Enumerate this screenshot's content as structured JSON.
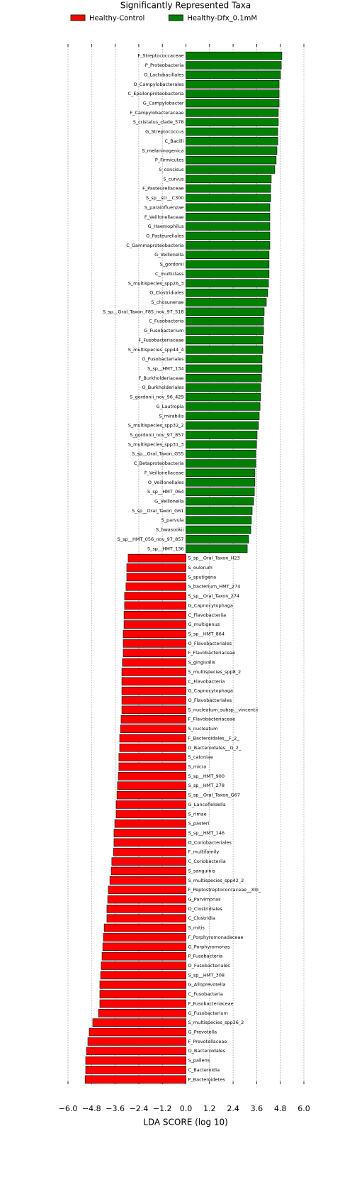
{
  "chart_data": {
    "type": "bar",
    "orientation": "horizontal",
    "title": "Significantly Represented Taxa",
    "x_label": "LDA SCORE (log 10)",
    "categories": [
      "F_Streptococcaceae",
      "P_Proteobacteria",
      "O_Lactobacillales",
      "O_Campylobacterales",
      "C_Epsilonproteobacteria",
      "G_Campylobacter",
      "F_Campylobacteraceae",
      "S_cristatus_clade_578",
      "G_Streptococcus",
      "C_Bacilli",
      "S_melaninogenica",
      "P_Firmicutes",
      "S_concisus",
      "S_curvus",
      "F_Pasteurellaceae",
      "S_sp__str__C300",
      "S_parainfluenzae",
      "F_Veillonellaceae",
      "G_Haemophilus",
      "O_Pasteurellales",
      "C_Gammaproteobacteria",
      "G_Veillonella",
      "S_gordonii",
      "C_multiclass",
      "S_multispecies_spp26_3",
      "O_Clostridiales",
      "S_chosunense",
      "S_sp__Oral_Taxon_F85_nov_97_518",
      "C_Fusobacteria",
      "G_Fusobacterium",
      "F_Fusobacteriaceae",
      "S_multispecies_spp44_4",
      "O_Fusobacteriales",
      "S_sp__HMT_134",
      "F_Burkholderiaceae",
      "O_Burkholderiales",
      "S_gordonii_nov_96_429",
      "G_Lautropia",
      "S_mirabilis",
      "S_multispecies_spp32_2",
      "S_gordonii_nov_97_857",
      "S_multispecies_spp31_3",
      "S_sp__Oral_Taxon_G55",
      "C_Betaproteobacteria",
      "F_Veillonellaceae",
      "O_Veillonellales",
      "S_sp__HMT_064",
      "G_Veillonella",
      "S_sp__Oral_Taxon_G61",
      "S_parvula",
      "S_hwasookii",
      "S_sp__HMT_056_nov_97_857",
      "S_sp__HMT_136",
      "S_sp__Oral_Taxon_H23",
      "S_oulorum",
      "S_sputigena",
      "S_bacterium_HMT_274",
      "S_sp__Oral_Taxon_274",
      "G_Capnocytophaga",
      "C_Flavobacteriia",
      "G_multigenus",
      "S_sp__HMT_864",
      "O_Flavobacteriales",
      "F_Flavobacteriaceae",
      "S_gingivalis",
      "S_multispecies_spp8_2",
      "C_Flavobacteria",
      "G_Capnocytophaga",
      "O_Flavobacteriales",
      "S_nucleatum_subsp__vincentii",
      "F_Flavobacteriaceae",
      "S_nucleatum",
      "F_Bacteroidales__F_2_",
      "G_Bacteroidales__G_2_",
      "S_catoniae",
      "S_micra",
      "S_sp__HMT_900",
      "S_sp__HMT_278",
      "S_sp__Oral_Taxon_G67",
      "G_Lancefieldella",
      "S_rimae",
      "S_pasteri",
      "S_sp__HMT_146",
      "O_Coriobacteriales",
      "F_multifamily",
      "C_Coriobacteriia",
      "S_sanguinis",
      "S_multispecies_spp42_2",
      "F_Peptostreptococcaceae__XIII_",
      "G_Parvimonas",
      "O_Clostridiales",
      "C_Clostridia",
      "S_mitis",
      "F_Porphyromonadaceae",
      "G_Porphyromonas",
      "P_Fusobacteria",
      "O_Fusobacteriales",
      "S_sp__HMT_308",
      "G_Alloprevotella",
      "C_Fusobacteria",
      "F_Fusobacteriaceae",
      "G_Fusobacterium",
      "S_multispecies_spp36_2",
      "G_Prevotella",
      "F_Prevotellaceae",
      "O_Bacteroidales",
      "S_pallens",
      "C_Bacteroidia",
      "P_Bacteroidetes"
    ],
    "series": [
      {
        "name": "Healthy-Control",
        "color": "#ff0000",
        "values": [
          null,
          null,
          null,
          null,
          null,
          null,
          null,
          null,
          null,
          null,
          null,
          null,
          null,
          null,
          null,
          null,
          null,
          null,
          null,
          null,
          null,
          null,
          null,
          null,
          null,
          null,
          null,
          null,
          null,
          null,
          null,
          null,
          null,
          null,
          null,
          null,
          null,
          null,
          null,
          null,
          null,
          null,
          null,
          null,
          null,
          null,
          null,
          null,
          null,
          null,
          null,
          null,
          null,
          -2.94,
          -3.01,
          -3.01,
          -3.05,
          -3.12,
          -3.12,
          -3.15,
          -3.15,
          -3.19,
          -3.19,
          -3.19,
          -3.23,
          -3.26,
          -3.26,
          -3.26,
          -3.26,
          -3.26,
          -3.3,
          -3.33,
          -3.37,
          -3.37,
          -3.41,
          -3.41,
          -3.44,
          -3.48,
          -3.51,
          -3.55,
          -3.55,
          -3.62,
          -3.66,
          -3.66,
          -3.69,
          -3.77,
          -3.8,
          -3.87,
          -3.95,
          -3.98,
          -4.02,
          -4.02,
          -4.16,
          -4.2,
          -4.23,
          -4.27,
          -4.31,
          -4.34,
          -4.38,
          -4.38,
          -4.38,
          -4.45,
          -4.74,
          -4.92,
          -4.99,
          -5.06,
          -5.1,
          -5.1,
          -5.13
        ]
      },
      {
        "name": "Healthy-Dfx_0.1mM",
        "color": "#008000",
        "values": [
          4.88,
          4.85,
          4.81,
          4.74,
          4.74,
          4.74,
          4.7,
          4.7,
          4.67,
          4.67,
          4.63,
          4.59,
          4.52,
          4.34,
          4.31,
          4.31,
          4.27,
          4.27,
          4.27,
          4.27,
          4.27,
          4.23,
          4.23,
          4.23,
          4.2,
          4.16,
          4.09,
          3.98,
          3.95,
          3.95,
          3.91,
          3.91,
          3.87,
          3.87,
          3.84,
          3.8,
          3.8,
          3.77,
          3.73,
          3.69,
          3.62,
          3.59,
          3.55,
          3.55,
          3.51,
          3.51,
          3.48,
          3.44,
          3.37,
          3.33,
          3.3,
          3.19,
          3.12,
          null,
          null,
          null,
          null,
          null,
          null,
          null,
          null,
          null,
          null,
          null,
          null,
          null,
          null,
          null,
          null,
          null,
          null,
          null,
          null,
          null,
          null,
          null,
          null,
          null,
          null,
          null,
          null,
          null,
          null,
          null,
          null,
          null,
          null,
          null,
          null,
          null,
          null,
          null,
          null,
          null,
          null,
          null,
          null,
          null,
          null,
          null,
          null,
          null,
          null,
          null,
          null,
          null,
          null,
          null,
          null
        ]
      }
    ],
    "xlim": [
      -6.0,
      6.0
    ],
    "xticks": [
      {
        "value": -6.0,
        "label": "−6.0"
      },
      {
        "value": -4.8,
        "label": "−4.8"
      },
      {
        "value": -3.6,
        "label": "−3.6"
      },
      {
        "value": -2.4,
        "label": "−2.4"
      },
      {
        "value": -1.2,
        "label": "−1.2"
      },
      {
        "value": 0,
        "label": "0.0"
      },
      {
        "value": 1.2,
        "label": "1.2"
      },
      {
        "value": 2.4,
        "label": "2.4"
      },
      {
        "value": 3.6,
        "label": "3.6"
      },
      {
        "value": 4.8,
        "label": "4.8"
      },
      {
        "value": 6.0,
        "label": "6.0"
      }
    ],
    "grid": true,
    "legend": "top"
  }
}
